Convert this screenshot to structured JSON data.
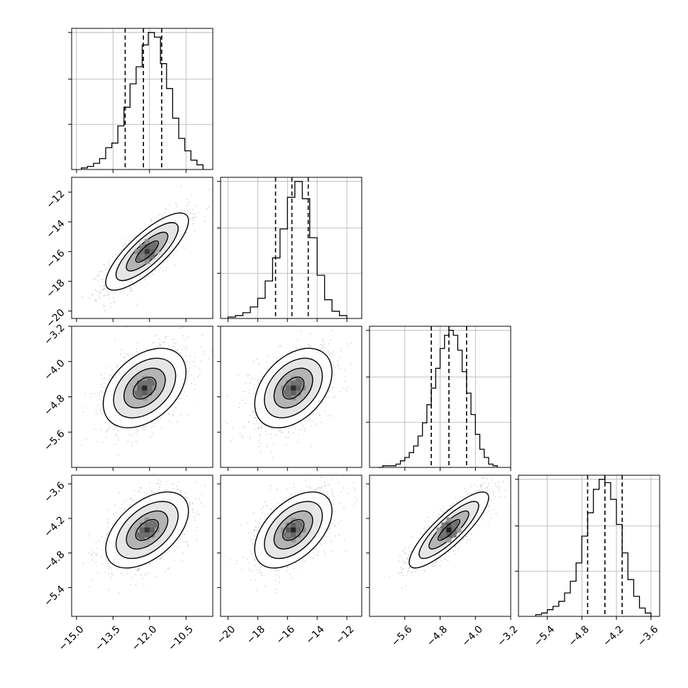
{
  "chart_data": {
    "type": "corner",
    "title": "",
    "colors": {
      "axes": "#000000",
      "grid": "#b0b0b0",
      "hist": "#000000",
      "quantile": "#000000",
      "points": "#8c8c8c"
    },
    "grid": true,
    "parameters": [
      {
        "index": 0,
        "range": [
          -15.2,
          -9.4
        ],
        "ticks": [
          "−15.0",
          "−13.5",
          "−12.0",
          "−10.5"
        ],
        "tick_values": [
          -15.0,
          -13.5,
          -12.0,
          -10.5
        ],
        "quantiles": [
          -13.0,
          -12.25,
          -11.5
        ]
      },
      {
        "index": 1,
        "range": [
          -20.5,
          -11.0
        ],
        "ticks": [
          "−20",
          "−18",
          "−16",
          "−14",
          "−12"
        ],
        "tick_values": [
          -20,
          -18,
          -16,
          -14,
          -12
        ],
        "quantiles": [
          -16.8,
          -15.7,
          -14.6
        ]
      },
      {
        "index": 2,
        "range": [
          -6.4,
          -3.2
        ],
        "ticks": [
          "−5.6",
          "−4.8",
          "−4.0",
          "−3.2"
        ],
        "tick_values": [
          -5.6,
          -4.8,
          -4.0,
          -3.2
        ],
        "quantiles": [
          -5.0,
          -4.6,
          -4.2
        ]
      },
      {
        "index": 3,
        "range": [
          -5.9,
          -3.45
        ],
        "ticks": [
          "−5.4",
          "−4.8",
          "−4.2",
          "−3.6"
        ],
        "tick_values": [
          -5.4,
          -4.8,
          -4.2,
          -3.6
        ],
        "quantiles": [
          -4.7,
          -4.4,
          -4.1
        ]
      }
    ],
    "histograms": [
      {
        "param": 0,
        "bin_edges": [
          -14.8,
          -14.55,
          -14.3,
          -14.05,
          -13.8,
          -13.55,
          -13.3,
          -13.05,
          -12.8,
          -12.55,
          -12.3,
          -12.05,
          -11.8,
          -11.55,
          -11.3,
          -11.05,
          -10.8,
          -10.55,
          -10.3,
          -10.05,
          -9.8
        ],
        "counts": [
          1,
          2,
          4,
          7,
          14,
          17,
          28,
          40,
          55,
          66,
          80,
          88,
          85,
          68,
          52,
          33,
          20,
          12,
          6,
          3
        ]
      },
      {
        "param": 1,
        "bin_edges": [
          -20,
          -19.5,
          -19,
          -18.5,
          -18,
          -17.5,
          -17,
          -16.5,
          -16,
          -15.5,
          -15,
          -14.5,
          -14,
          -13.5,
          -13,
          -12.5,
          -12
        ],
        "counts": [
          1,
          2,
          4,
          8,
          14,
          26,
          42,
          62,
          84,
          95,
          83,
          56,
          30,
          13,
          5,
          2
        ]
      },
      {
        "param": 2,
        "bin_edges": [
          -6.2,
          -6.1,
          -6,
          -5.9,
          -5.8,
          -5.7,
          -5.6,
          -5.5,
          -5.4,
          -5.3,
          -5.2,
          -5.1,
          -5,
          -4.9,
          -4.8,
          -4.7,
          -4.6,
          -4.5,
          -4.4,
          -4.3,
          -4.2,
          -4.1,
          -4,
          -3.9,
          -3.8,
          -3.7,
          -3.6,
          -3.5
        ],
        "counts": [
          0,
          1,
          1,
          1,
          2,
          4,
          6,
          9,
          13,
          19,
          27,
          38,
          48,
          60,
          72,
          80,
          83,
          80,
          71,
          58,
          45,
          32,
          20,
          11,
          6,
          2,
          1
        ]
      },
      {
        "param": 3,
        "bin_edges": [
          -5.6,
          -5.5,
          -5.4,
          -5.3,
          -5.2,
          -5.1,
          -5,
          -4.9,
          -4.8,
          -4.7,
          -4.6,
          -4.5,
          -4.4,
          -4.3,
          -4.2,
          -4.1,
          -4,
          -3.9,
          -3.8,
          -3.7,
          -3.6
        ],
        "counts": [
          1,
          2,
          4,
          6,
          9,
          14,
          21,
          32,
          48,
          62,
          76,
          82,
          80,
          70,
          55,
          38,
          22,
          12,
          5,
          2
        ]
      }
    ],
    "scatter_panels": [
      {
        "x": 0,
        "y": 1,
        "mean": [
          -12.1,
          -16.0
        ],
        "sd": [
          0.85,
          1.3
        ],
        "corr": 0.8
      },
      {
        "x": 0,
        "y": 2,
        "mean": [
          -12.2,
          -4.6
        ],
        "sd": [
          0.85,
          0.45
        ],
        "corr": 0.4
      },
      {
        "x": 1,
        "y": 2,
        "mean": [
          -15.6,
          -4.6
        ],
        "sd": [
          1.3,
          0.45
        ],
        "corr": 0.4
      },
      {
        "x": 0,
        "y": 3,
        "mean": [
          -12.1,
          -4.4
        ],
        "sd": [
          0.85,
          0.33
        ],
        "corr": 0.5
      },
      {
        "x": 1,
        "y": 3,
        "mean": [
          -15.6,
          -4.4
        ],
        "sd": [
          1.3,
          0.33
        ],
        "corr": 0.5
      },
      {
        "x": 2,
        "y": 3,
        "mean": [
          -4.6,
          -4.4
        ],
        "sd": [
          0.45,
          0.33
        ],
        "corr": 0.85
      }
    ]
  }
}
